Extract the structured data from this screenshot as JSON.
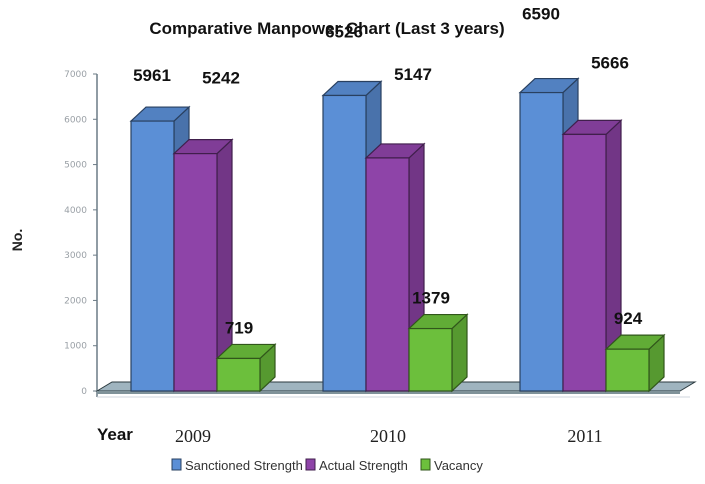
{
  "chart_data": {
    "type": "bar",
    "title": "Comparative Manpower Chart (Last 3 years)",
    "xlabel": "Year",
    "ylabel": "No.",
    "categories": [
      "2009",
      "2010",
      "2011"
    ],
    "series": [
      {
        "name": "Sanctioned Strength",
        "values": [
          5961,
          6526,
          6590
        ],
        "color": "#5b8fd6"
      },
      {
        "name": "Actual Strength",
        "values": [
          5242,
          5147,
          5666
        ],
        "color": "#8e44a8"
      },
      {
        "name": "Vacancy",
        "values": [
          719,
          1379,
          924
        ],
        "color": "#6cbf3c"
      }
    ],
    "ylim": [
      0,
      7000
    ],
    "yticks": [
      "0",
      "1000",
      "2000",
      "3000",
      "4000",
      "5000",
      "6000",
      "7000"
    ],
    "legend_position": "bottom",
    "grid": false,
    "style": "3d-clustered-column"
  }
}
